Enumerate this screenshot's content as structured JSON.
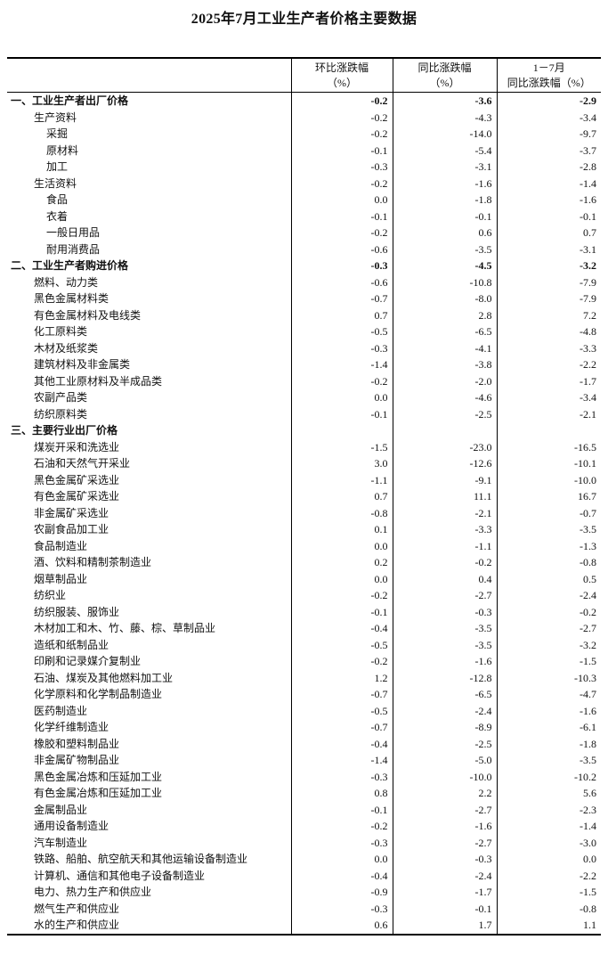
{
  "title": "2025年7月工业生产者价格主要数据",
  "header": {
    "col1": [
      "环比涨跌幅",
      "（%）"
    ],
    "col2": [
      "同比涨跌幅",
      "（%）"
    ],
    "col3": [
      "1－7月",
      "同比涨跌幅（%）"
    ]
  },
  "rows": [
    {
      "label": "一、工业生产者出厂价格",
      "level": 0,
      "bold": true,
      "mom": "-0.2",
      "yoy": "-3.6",
      "ytd": "-2.9"
    },
    {
      "label": "生产资料",
      "level": 1,
      "mom": "-0.2",
      "yoy": "-4.3",
      "ytd": "-3.4"
    },
    {
      "label": "采掘",
      "level": 2,
      "mom": "-0.2",
      "yoy": "-14.0",
      "ytd": "-9.7"
    },
    {
      "label": "原材料",
      "level": 2,
      "mom": "-0.1",
      "yoy": "-5.4",
      "ytd": "-3.7"
    },
    {
      "label": "加工",
      "level": 2,
      "mom": "-0.3",
      "yoy": "-3.1",
      "ytd": "-2.8"
    },
    {
      "label": "生活资料",
      "level": 1,
      "mom": "-0.2",
      "yoy": "-1.6",
      "ytd": "-1.4"
    },
    {
      "label": "食品",
      "level": 2,
      "mom": "0.0",
      "yoy": "-1.8",
      "ytd": "-1.6"
    },
    {
      "label": "衣着",
      "level": 2,
      "mom": "-0.1",
      "yoy": "-0.1",
      "ytd": "-0.1"
    },
    {
      "label": "一般日用品",
      "level": 2,
      "mom": "-0.2",
      "yoy": "0.6",
      "ytd": "0.7"
    },
    {
      "label": "耐用消费品",
      "level": 2,
      "mom": "-0.6",
      "yoy": "-3.5",
      "ytd": "-3.1"
    },
    {
      "label": "二、工业生产者购进价格",
      "level": 0,
      "bold": true,
      "mom": "-0.3",
      "yoy": "-4.5",
      "ytd": "-3.2"
    },
    {
      "label": "燃料、动力类",
      "level": 1,
      "mom": "-0.6",
      "yoy": "-10.8",
      "ytd": "-7.9"
    },
    {
      "label": "黑色金属材料类",
      "level": 1,
      "mom": "-0.7",
      "yoy": "-8.0",
      "ytd": "-7.9"
    },
    {
      "label": "有色金属材料及电线类",
      "level": 1,
      "mom": "0.7",
      "yoy": "2.8",
      "ytd": "7.2"
    },
    {
      "label": "化工原料类",
      "level": 1,
      "mom": "-0.5",
      "yoy": "-6.5",
      "ytd": "-4.8"
    },
    {
      "label": "木材及纸浆类",
      "level": 1,
      "mom": "-0.3",
      "yoy": "-4.1",
      "ytd": "-3.3"
    },
    {
      "label": "建筑材料及非金属类",
      "level": 1,
      "mom": "-1.4",
      "yoy": "-3.8",
      "ytd": "-2.2"
    },
    {
      "label": "其他工业原材料及半成品类",
      "level": 1,
      "mom": "-0.2",
      "yoy": "-2.0",
      "ytd": "-1.7"
    },
    {
      "label": "农副产品类",
      "level": 1,
      "mom": "0.0",
      "yoy": "-4.6",
      "ytd": "-3.4"
    },
    {
      "label": "纺织原料类",
      "level": 1,
      "mom": "-0.1",
      "yoy": "-2.5",
      "ytd": "-2.1"
    },
    {
      "label": "三、主要行业出厂价格",
      "level": 0,
      "bold": true,
      "mom": "",
      "yoy": "",
      "ytd": ""
    },
    {
      "label": "煤炭开采和洗选业",
      "level": 1,
      "mom": "-1.5",
      "yoy": "-23.0",
      "ytd": "-16.5"
    },
    {
      "label": "石油和天然气开采业",
      "level": 1,
      "mom": "3.0",
      "yoy": "-12.6",
      "ytd": "-10.1"
    },
    {
      "label": "黑色金属矿采选业",
      "level": 1,
      "mom": "-1.1",
      "yoy": "-9.1",
      "ytd": "-10.0"
    },
    {
      "label": "有色金属矿采选业",
      "level": 1,
      "mom": "0.7",
      "yoy": "11.1",
      "ytd": "16.7"
    },
    {
      "label": "非金属矿采选业",
      "level": 1,
      "mom": "-0.8",
      "yoy": "-2.1",
      "ytd": "-0.7"
    },
    {
      "label": "农副食品加工业",
      "level": 1,
      "mom": "0.1",
      "yoy": "-3.3",
      "ytd": "-3.5"
    },
    {
      "label": "食品制造业",
      "level": 1,
      "mom": "0.0",
      "yoy": "-1.1",
      "ytd": "-1.3"
    },
    {
      "label": "酒、饮料和精制茶制造业",
      "level": 1,
      "mom": "0.2",
      "yoy": "-0.2",
      "ytd": "-0.8"
    },
    {
      "label": "烟草制品业",
      "level": 1,
      "mom": "0.0",
      "yoy": "0.4",
      "ytd": "0.5"
    },
    {
      "label": "纺织业",
      "level": 1,
      "mom": "-0.2",
      "yoy": "-2.7",
      "ytd": "-2.4"
    },
    {
      "label": "纺织服装、服饰业",
      "level": 1,
      "mom": "-0.1",
      "yoy": "-0.3",
      "ytd": "-0.2"
    },
    {
      "label": "木材加工和木、竹、藤、棕、草制品业",
      "level": 1,
      "mom": "-0.4",
      "yoy": "-3.5",
      "ytd": "-2.7"
    },
    {
      "label": "造纸和纸制品业",
      "level": 1,
      "mom": "-0.5",
      "yoy": "-3.5",
      "ytd": "-3.2"
    },
    {
      "label": "印刷和记录媒介复制业",
      "level": 1,
      "mom": "-0.2",
      "yoy": "-1.6",
      "ytd": "-1.5"
    },
    {
      "label": "石油、煤炭及其他燃料加工业",
      "level": 1,
      "mom": "1.2",
      "yoy": "-12.8",
      "ytd": "-10.3"
    },
    {
      "label": "化学原料和化学制品制造业",
      "level": 1,
      "mom": "-0.7",
      "yoy": "-6.5",
      "ytd": "-4.7"
    },
    {
      "label": "医药制造业",
      "level": 1,
      "mom": "-0.5",
      "yoy": "-2.4",
      "ytd": "-1.6"
    },
    {
      "label": "化学纤维制造业",
      "level": 1,
      "mom": "-0.7",
      "yoy": "-8.9",
      "ytd": "-6.1"
    },
    {
      "label": "橡胶和塑料制品业",
      "level": 1,
      "mom": "-0.4",
      "yoy": "-2.5",
      "ytd": "-1.8"
    },
    {
      "label": "非金属矿物制品业",
      "level": 1,
      "mom": "-1.4",
      "yoy": "-5.0",
      "ytd": "-3.5"
    },
    {
      "label": "黑色金属冶炼和压延加工业",
      "level": 1,
      "mom": "-0.3",
      "yoy": "-10.0",
      "ytd": "-10.2"
    },
    {
      "label": "有色金属冶炼和压延加工业",
      "level": 1,
      "mom": "0.8",
      "yoy": "2.2",
      "ytd": "5.6"
    },
    {
      "label": "金属制品业",
      "level": 1,
      "mom": "-0.1",
      "yoy": "-2.7",
      "ytd": "-2.3"
    },
    {
      "label": "通用设备制造业",
      "level": 1,
      "mom": "-0.2",
      "yoy": "-1.6",
      "ytd": "-1.4"
    },
    {
      "label": "汽车制造业",
      "level": 1,
      "mom": "-0.3",
      "yoy": "-2.7",
      "ytd": "-3.0"
    },
    {
      "label": "铁路、船舶、航空航天和其他运输设备制造业",
      "level": 1,
      "mom": "0.0",
      "yoy": "-0.3",
      "ytd": "0.0"
    },
    {
      "label": "计算机、通信和其他电子设备制造业",
      "level": 1,
      "mom": "-0.4",
      "yoy": "-2.4",
      "ytd": "-2.2"
    },
    {
      "label": "电力、热力生产和供应业",
      "level": 1,
      "mom": "-0.9",
      "yoy": "-1.7",
      "ytd": "-1.5"
    },
    {
      "label": "燃气生产和供应业",
      "level": 1,
      "mom": "-0.3",
      "yoy": "-0.1",
      "ytd": "-0.8"
    },
    {
      "label": "水的生产和供应业",
      "level": 1,
      "mom": "0.6",
      "yoy": "1.7",
      "ytd": "1.1"
    }
  ]
}
